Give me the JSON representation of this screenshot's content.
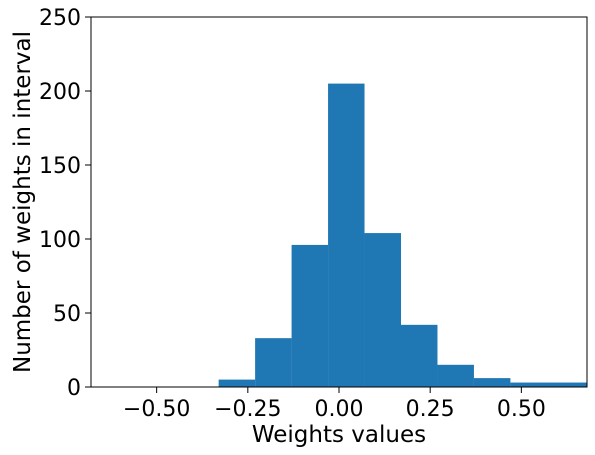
{
  "chart_data": {
    "type": "bar",
    "xlabel": "Weights values",
    "ylabel": "Number of weights in interval",
    "xlim": [
      -0.68,
      0.68
    ],
    "ylim": [
      0,
      250
    ],
    "xticks": [
      -0.5,
      -0.25,
      0.0,
      0.25,
      0.5
    ],
    "xtick_labels": [
      "−0.50",
      "−0.25",
      "0.00",
      "0.25",
      "0.50"
    ],
    "yticks": [
      0,
      50,
      100,
      150,
      200,
      250
    ],
    "ytick_labels": [
      "0",
      "50",
      "100",
      "150",
      "200",
      "250"
    ],
    "bar_color": "#1f77b4",
    "grid": false,
    "bins": [
      {
        "x0": -0.33,
        "x1": -0.23,
        "count": 5
      },
      {
        "x0": -0.23,
        "x1": -0.13,
        "count": 33
      },
      {
        "x0": -0.13,
        "x1": -0.03,
        "count": 96
      },
      {
        "x0": -0.03,
        "x1": 0.07,
        "count": 205
      },
      {
        "x0": 0.07,
        "x1": 0.17,
        "count": 104
      },
      {
        "x0": 0.17,
        "x1": 0.27,
        "count": 42
      },
      {
        "x0": 0.27,
        "x1": 0.37,
        "count": 15
      },
      {
        "x0": 0.37,
        "x1": 0.47,
        "count": 6
      },
      {
        "x0": 0.47,
        "x1": 0.68,
        "count": 3
      }
    ]
  }
}
